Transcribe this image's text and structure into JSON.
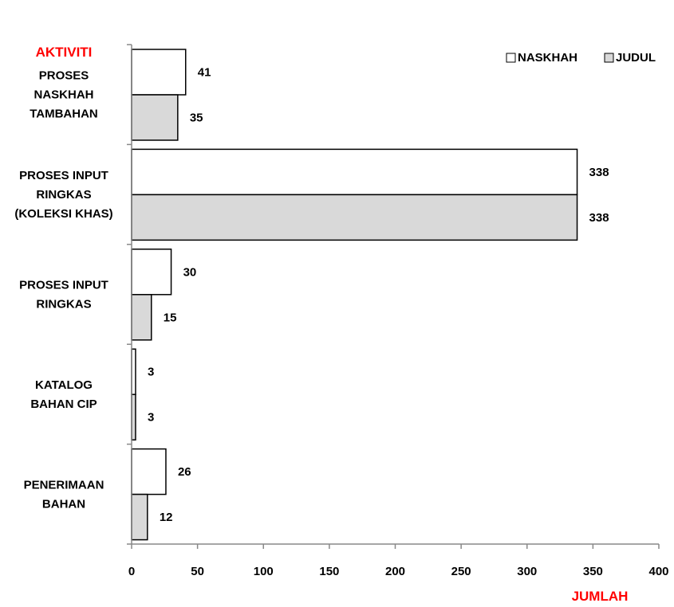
{
  "chart_data": {
    "type": "bar",
    "orientation": "horizontal",
    "ylabel": "AKTIVITI",
    "xlabel": "JUMLAH",
    "xlim": [
      0,
      400
    ],
    "xticks": [
      0,
      50,
      100,
      150,
      200,
      250,
      300,
      350,
      400
    ],
    "categories": [
      [
        "PROSES",
        "NASKHAH",
        "TAMBAHAN"
      ],
      [
        "PROSES INPUT",
        "RINGKAS",
        "(KOLEKSI KHAS)"
      ],
      [
        "PROSES INPUT",
        "RINGKAS"
      ],
      [
        "KATALOG",
        "BAHAN CIP"
      ],
      [
        "PENERIMAAN",
        "BAHAN"
      ]
    ],
    "series": [
      {
        "name": "NASKHAH",
        "color": "#ffffff",
        "values": [
          41,
          338,
          30,
          3,
          26
        ]
      },
      {
        "name": "JUDUL",
        "color": "#d9d9d9",
        "values": [
          35,
          338,
          15,
          3,
          12
        ]
      }
    ],
    "grid": false,
    "legend": "top-right"
  }
}
